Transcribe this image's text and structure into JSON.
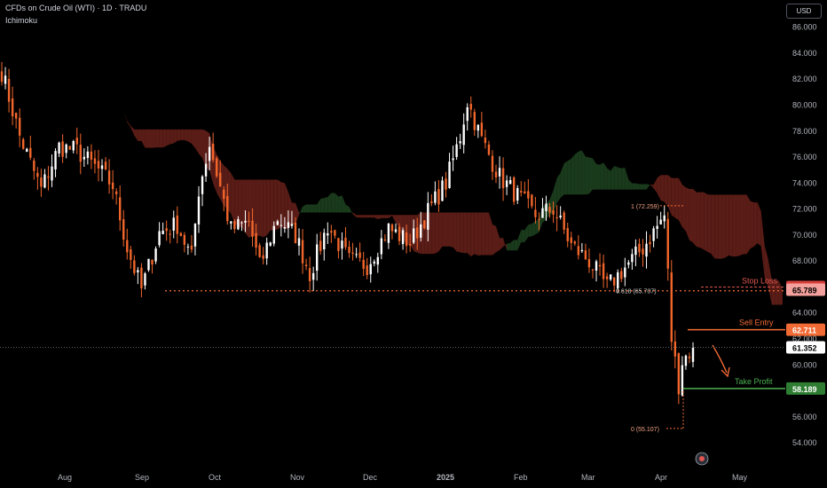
{
  "header": {
    "title": "CFDs on Crude Oil (WTI) · 1D · TRADU",
    "indicator": "Ichimoku"
  },
  "currency_button": "USD",
  "colors": {
    "background": "#000000",
    "up": "#ffffff",
    "down": "#f2662b",
    "cloud_bear": "#5a1c16",
    "cloud_bull": "#1a3a1c",
    "stop_loss": "#e05650",
    "entry": "#f26b35",
    "take_profit": "#4caf50",
    "axis_text": "#b2b5be"
  },
  "chart_data": {
    "type": "candlestick",
    "y_axis": {
      "ticks": [
        "86.000",
        "84.000",
        "82.000",
        "80.000",
        "78.000",
        "76.000",
        "74.000",
        "72.000",
        "70.000",
        "68.000",
        "66.000",
        "64.000",
        "62.000",
        "60.000",
        "58.000",
        "56.000",
        "54.000"
      ],
      "ylim": [
        53,
        87
      ]
    },
    "x_axis": {
      "ticks": [
        "Aug",
        "Sep",
        "Oct",
        "Nov",
        "Dec",
        "2025",
        "Feb",
        "Mar",
        "Apr",
        "May"
      ]
    },
    "series_anchors": [
      {
        "date": "Jul 17",
        "close": 82.6
      },
      {
        "date": "Jul 24",
        "close": 77.6
      },
      {
        "date": "Aug 2",
        "close": 73.5
      },
      {
        "date": "Aug 9",
        "close": 76.8
      },
      {
        "date": "Aug 16",
        "close": 76.5
      },
      {
        "date": "Aug 24",
        "close": 75.0
      },
      {
        "date": "Aug 30",
        "close": 73.8
      },
      {
        "date": "Sep 5",
        "close": 69.0
      },
      {
        "date": "Sep 10",
        "close": 65.8
      },
      {
        "date": "Sep 17",
        "close": 70.2
      },
      {
        "date": "Sep 24",
        "close": 70.8
      },
      {
        "date": "Sep 30",
        "close": 68.2
      },
      {
        "date": "Oct 3",
        "close": 73.5
      },
      {
        "date": "Oct 7",
        "close": 77.0
      },
      {
        "date": "Oct 15",
        "close": 70.4
      },
      {
        "date": "Oct 22",
        "close": 71.0
      },
      {
        "date": "Oct 26",
        "close": 67.6
      },
      {
        "date": "Nov 2",
        "close": 71.3
      },
      {
        "date": "Nov 9",
        "close": 70.0
      },
      {
        "date": "Nov 15",
        "close": 67.0
      },
      {
        "date": "Nov 22",
        "close": 70.7
      },
      {
        "date": "Nov 30",
        "close": 68.0
      },
      {
        "date": "Dec 7",
        "close": 67.7
      },
      {
        "date": "Dec 15",
        "close": 70.5
      },
      {
        "date": "Dec 24",
        "close": 69.4
      },
      {
        "date": "Dec 31",
        "close": 71.8
      },
      {
        "date": "Jan 7",
        "close": 74.0
      },
      {
        "date": "Jan 12",
        "close": 77.6
      },
      {
        "date": "Jan 15",
        "close": 80.3
      },
      {
        "date": "Jan 20",
        "close": 77.3
      },
      {
        "date": "Jan 27",
        "close": 74.5
      },
      {
        "date": "Feb 3",
        "close": 73.0
      },
      {
        "date": "Feb 10",
        "close": 71.5
      },
      {
        "date": "Feb 17",
        "close": 72.0
      },
      {
        "date": "Feb 24",
        "close": 69.2
      },
      {
        "date": "Mar 3",
        "close": 68.0
      },
      {
        "date": "Mar 10",
        "close": 66.0
      },
      {
        "date": "Mar 17",
        "close": 67.5
      },
      {
        "date": "Mar 24",
        "close": 69.0
      },
      {
        "date": "Apr 1",
        "close": 71.5
      },
      {
        "date": "Apr 3",
        "close": 67.0
      },
      {
        "date": "Apr 5",
        "close": 62.0
      },
      {
        "date": "Apr 8",
        "close": 58.5
      },
      {
        "date": "Apr 10",
        "close": 60.3
      },
      {
        "date": "Apr 14",
        "close": 61.35
      }
    ],
    "annotations": {
      "fib_1": "1 (72.259)",
      "fib_0618": "0.618 (65.707)",
      "fib_0": "0 (55.107)",
      "stop_loss": {
        "label": "Stop Loss",
        "value": 66.0,
        "tag": "66.000"
      },
      "fib_tag": {
        "value": 65.789,
        "tag": "65.789"
      },
      "sell_entry": {
        "label": "Sell Entry",
        "value": 62.711,
        "tag": "62.711"
      },
      "last_price": {
        "value": 61.352,
        "tag": "61.352"
      },
      "take_profit": {
        "label": "Take Profit",
        "value": 58.189,
        "tag": "58.189"
      },
      "support_value": 65.707
    }
  }
}
